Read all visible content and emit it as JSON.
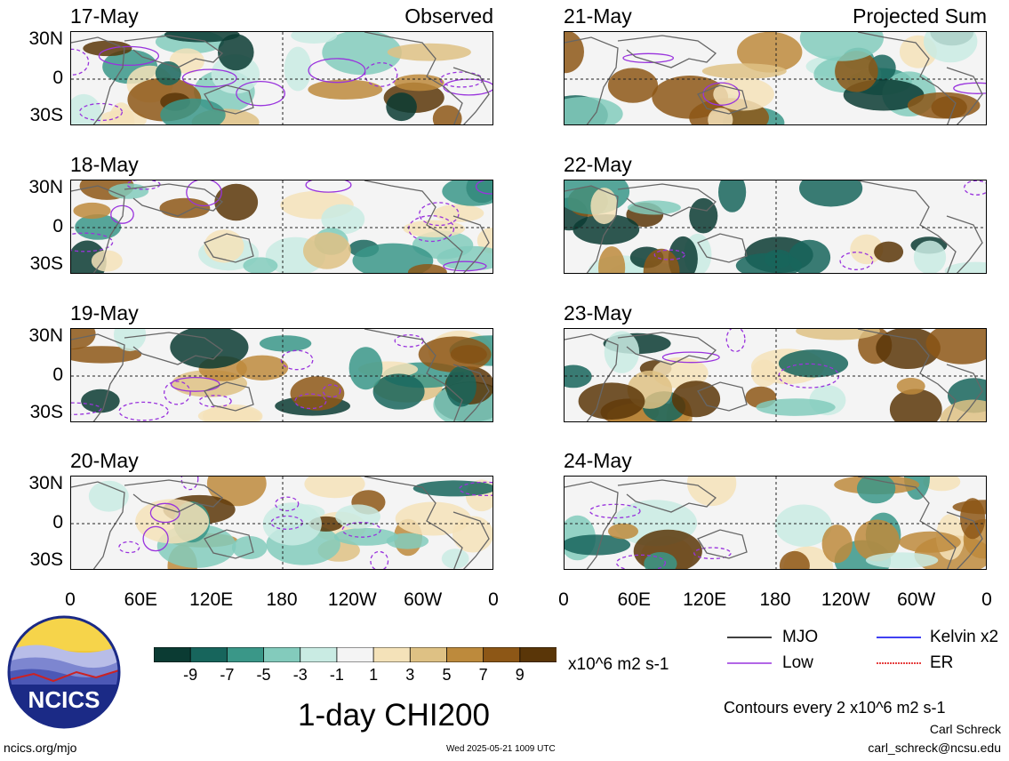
{
  "panels_left": [
    {
      "date": "17-May",
      "tag": "Observed"
    },
    {
      "date": "18-May",
      "tag": ""
    },
    {
      "date": "19-May",
      "tag": ""
    },
    {
      "date": "20-May",
      "tag": ""
    }
  ],
  "panels_right": [
    {
      "date": "21-May",
      "tag": "Projected Sum"
    },
    {
      "date": "22-May",
      "tag": ""
    },
    {
      "date": "23-May",
      "tag": ""
    },
    {
      "date": "24-May",
      "tag": ""
    }
  ],
  "lat_labels": [
    "30N",
    "0",
    "30S"
  ],
  "lon_labels": [
    "0",
    "60E",
    "120E",
    "180",
    "120W",
    "60W",
    "0"
  ],
  "colorbar": {
    "labels": [
      "-9",
      "-7",
      "-5",
      "-3",
      "-1",
      "1",
      "3",
      "5",
      "7",
      "9"
    ],
    "colors": [
      "#0b3b33",
      "#17655c",
      "#3a9788",
      "#83cbbc",
      "#c9ebe3",
      "#f4f4f4",
      "#f4e2b9",
      "#dec184",
      "#bd8a3c",
      "#8d5716",
      "#5a3608"
    ],
    "units": "x10^6 m2 s-1"
  },
  "legend": {
    "mjo": "MJO",
    "low": "Low",
    "kelvin": "Kelvin x2",
    "er": "ER",
    "colors": {
      "mjo": "#000000",
      "low": "#9933dd",
      "kelvin": "#0000ee",
      "er": "#dd0000"
    }
  },
  "title": "1-day CHI200",
  "contours_note": "Contours every 2 x10^6 m2 s-1",
  "author": "Carl Schreck",
  "email": "carl_schreck@ncsu.edu",
  "site": "ncics.org/mjo",
  "timestamp": "Wed 2025-05-21 1009 UTC",
  "logo_text": "NCICS"
}
